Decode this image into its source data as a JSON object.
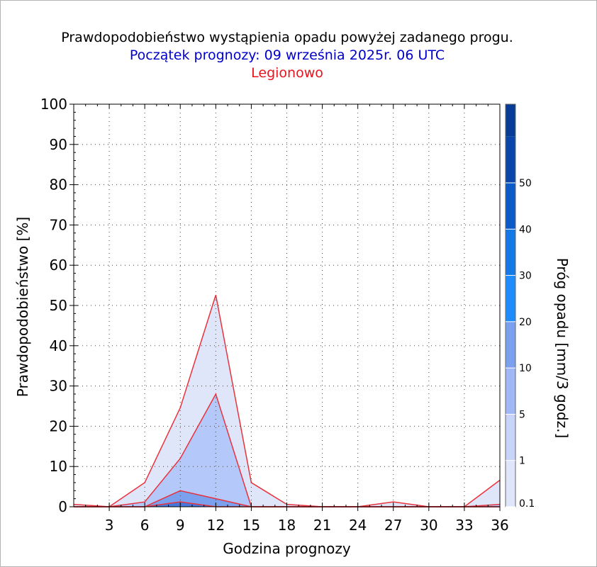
{
  "titles": {
    "line1": "Prawdopodobieństwo wystąpienia opadu powyżej zadanego progu.",
    "line2": "Początek prognozy: 09 września 2025r. 06 UTC",
    "line3": "Legionowo"
  },
  "chart_data": {
    "type": "area",
    "xlabel": "Godzina prognozy",
    "ylabel": "Prawdopodobieństwo [%]",
    "x": [
      0,
      3,
      6,
      9,
      12,
      15,
      18,
      21,
      24,
      27,
      30,
      33,
      36
    ],
    "x_ticks": [
      3,
      6,
      9,
      12,
      15,
      18,
      21,
      24,
      27,
      30,
      33,
      36
    ],
    "y_ticks": [
      0,
      10,
      20,
      30,
      40,
      50,
      60,
      70,
      80,
      90,
      100
    ],
    "xlim": [
      0,
      36
    ],
    "ylim": [
      0,
      100
    ],
    "grid": true,
    "series": [
      {
        "name": "0.1",
        "color": "#e0e6fa",
        "values": [
          0.6,
          0,
          6,
          24.6,
          52.6,
          6,
          0.6,
          0,
          0,
          1.2,
          0,
          0,
          6.6
        ]
      },
      {
        "name": "1",
        "color": "#b4c8fa",
        "values": [
          0,
          0,
          1.2,
          12,
          28,
          0,
          0,
          0,
          0,
          0,
          0,
          0,
          0.6
        ]
      },
      {
        "name": "5",
        "color": "#7aa0ee",
        "values": [
          0,
          0,
          0,
          4,
          2,
          0,
          0,
          0,
          0,
          0,
          0,
          0,
          0
        ]
      },
      {
        "name": "10",
        "color": "#4678dc",
        "values": [
          0,
          0,
          0,
          1.2,
          0,
          0,
          0,
          0,
          0,
          0,
          0,
          0,
          0
        ]
      }
    ],
    "line_color": "#e8323c",
    "colorbar": {
      "title": "Próg opadu [mm/3 godz.]",
      "labels": [
        "0.1",
        "1",
        "5",
        "10",
        "20",
        "30",
        "40",
        "50"
      ],
      "colors": [
        "#e0e6fa",
        "#c8d4fa",
        "#a0b8f5",
        "#7aa0ee",
        "#1e8cff",
        "#1478e6",
        "#0a5ac8",
        "#0a46aa",
        "#063c96"
      ]
    }
  }
}
